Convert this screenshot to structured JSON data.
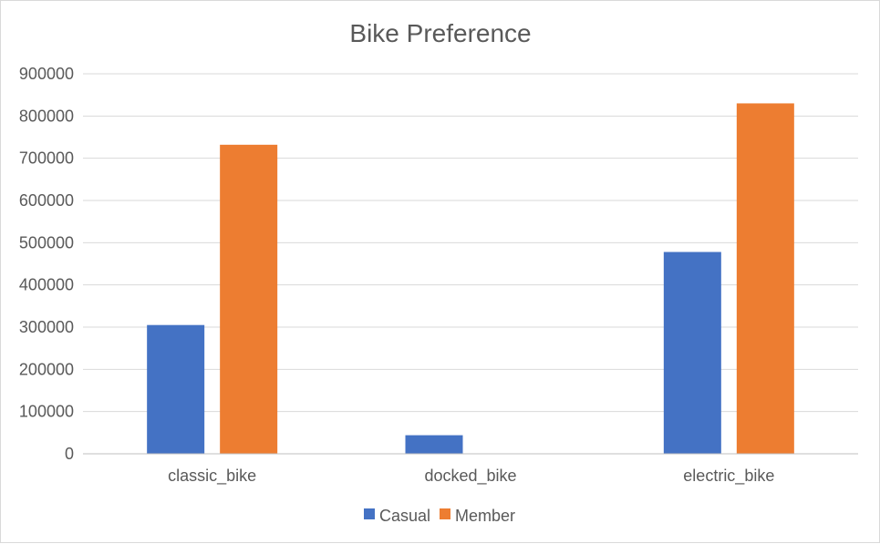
{
  "chart_data": {
    "type": "bar",
    "title": "Bike Preference",
    "xlabel": "",
    "ylabel": "",
    "categories": [
      "classic_bike",
      "docked_bike",
      "electric_bike"
    ],
    "series": [
      {
        "name": "Casual",
        "values": [
          305000,
          44000,
          478000
        ],
        "color": "#4472c4"
      },
      {
        "name": "Member",
        "values": [
          732000,
          0,
          830000
        ],
        "color": "#ed7d31"
      }
    ],
    "ylim": [
      0,
      900000
    ],
    "yticks": [
      0,
      100000,
      200000,
      300000,
      400000,
      500000,
      600000,
      700000,
      800000,
      900000
    ],
    "ytick_labels": [
      "0",
      "100000",
      "200000",
      "300000",
      "400000",
      "500000",
      "600000",
      "700000",
      "800000",
      "900000"
    ],
    "grid": true,
    "legend_position": "bottom",
    "colors": {
      "grid": "#d9d9d9",
      "axis": "#bfbfbf",
      "text": "#595959"
    }
  }
}
